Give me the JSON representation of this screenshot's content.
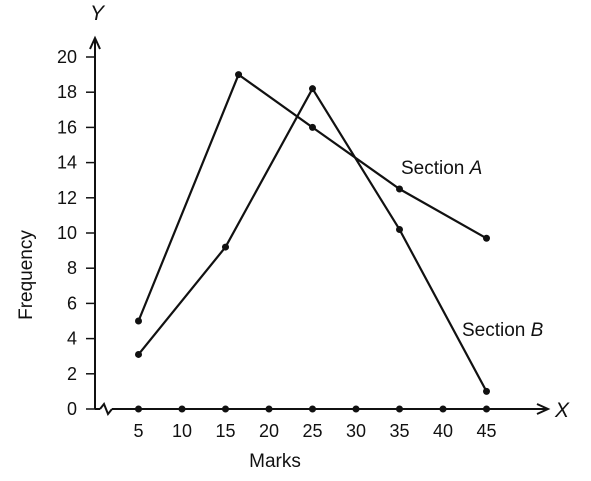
{
  "chart_data": {
    "type": "line",
    "xlabel": "Marks",
    "ylabel": "Frequency",
    "x_axis_letter": "X",
    "y_axis_letter": "Y",
    "x_ticks": [
      5,
      10,
      15,
      20,
      25,
      30,
      35,
      40,
      45
    ],
    "y_ticks": [
      0,
      2,
      4,
      6,
      8,
      10,
      12,
      14,
      16,
      18,
      20
    ],
    "xlim": [
      0,
      50
    ],
    "ylim": [
      0,
      20
    ],
    "axis_break_on_x": true,
    "grid": false,
    "series": [
      {
        "name": "Section A",
        "label_text": "Section ",
        "label_italic": "A",
        "x": [
          5,
          16.5,
          25,
          35,
          45
        ],
        "y": [
          5,
          19,
          16,
          12.5,
          9.7
        ]
      },
      {
        "name": "Section B",
        "label_text": "Section ",
        "label_italic": "B",
        "x": [
          5,
          15,
          25,
          35,
          45
        ],
        "y": [
          3.1,
          9.2,
          18.2,
          10.2,
          1
        ]
      }
    ],
    "baseline_points_x": [
      5,
      10,
      15,
      20,
      25,
      30,
      35,
      40,
      45
    ],
    "line_color": "#111111"
  }
}
